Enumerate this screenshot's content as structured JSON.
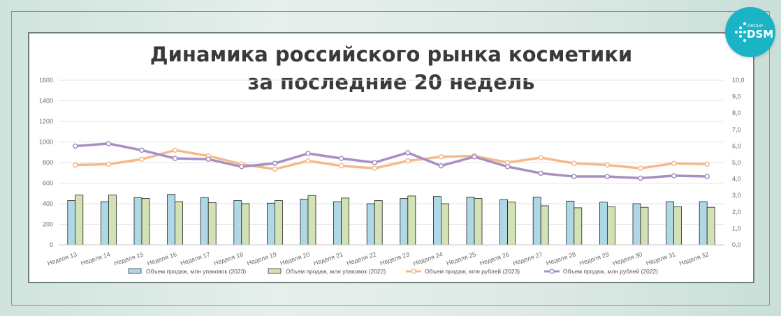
{
  "title": {
    "line1": "Динамика российского рынка косметики",
    "line2": "за последние 20 недель"
  },
  "logo": {
    "brand": "DSM",
    "sub": "GROUP"
  },
  "colors": {
    "bar2023": "#aed8e6",
    "bar2022": "#d3e2b4",
    "line2023": "#f6b98a",
    "line2022": "#a690c2",
    "grid": "#e3e3e3"
  },
  "chart_data": {
    "type": "bar",
    "categories": [
      "Неделя 13",
      "Неделя 14",
      "Неделя 15",
      "Неделя 16",
      "Неделя 17",
      "Неделя 18",
      "Неделя 19",
      "Неделя 20",
      "Неделя 21",
      "Неделя 22",
      "Неделя 23",
      "Неделя 24",
      "Неделя 25",
      "Неделя 26",
      "Неделя 27",
      "Неделя 28",
      "Неделя 29",
      "Неделя 30",
      "Неделя 31",
      "Неделя 32"
    ],
    "series": [
      {
        "name": "Объем продаж, млн упаковок (2023)",
        "type": "bar",
        "axis": "left",
        "values": [
          430,
          420,
          460,
          490,
          460,
          430,
          405,
          445,
          420,
          400,
          450,
          470,
          465,
          440,
          465,
          425,
          415,
          400,
          420,
          420
        ]
      },
      {
        "name": "Объем продаж, млн упаковок (2022)",
        "type": "bar",
        "axis": "left",
        "values": [
          485,
          485,
          450,
          420,
          410,
          400,
          430,
          480,
          455,
          430,
          475,
          400,
          450,
          415,
          380,
          360,
          370,
          365,
          370,
          365
        ]
      },
      {
        "name": "Объем продаж, млн рублей (2023)",
        "type": "line",
        "axis": "right",
        "values": [
          4.85,
          4.9,
          5.2,
          5.75,
          5.4,
          4.9,
          4.6,
          5.1,
          4.8,
          4.65,
          5.1,
          5.35,
          5.4,
          5.0,
          5.3,
          4.95,
          4.85,
          4.65,
          4.95,
          4.9
        ]
      },
      {
        "name": "Объем продаж, млн рублей (2022)",
        "type": "line",
        "axis": "right",
        "values": [
          6.0,
          6.15,
          5.75,
          5.25,
          5.2,
          4.75,
          4.95,
          5.55,
          5.25,
          5.0,
          5.6,
          4.8,
          5.35,
          4.75,
          4.35,
          4.15,
          4.15,
          4.05,
          4.2,
          4.15
        ]
      }
    ],
    "y_left": {
      "min": 0,
      "max": 1600,
      "ticks": [
        "0",
        "200",
        "400",
        "600",
        "800",
        "1000",
        "1200",
        "1400",
        "1600"
      ]
    },
    "y_right": {
      "min": 0,
      "max": 10,
      "ticks": [
        "0,0",
        "1,0",
        "2,0",
        "3,0",
        "4,0",
        "5,0",
        "6,0",
        "7,0",
        "8,0",
        "9,0",
        "10,0"
      ]
    },
    "grid": true,
    "legend_position": "bottom"
  }
}
